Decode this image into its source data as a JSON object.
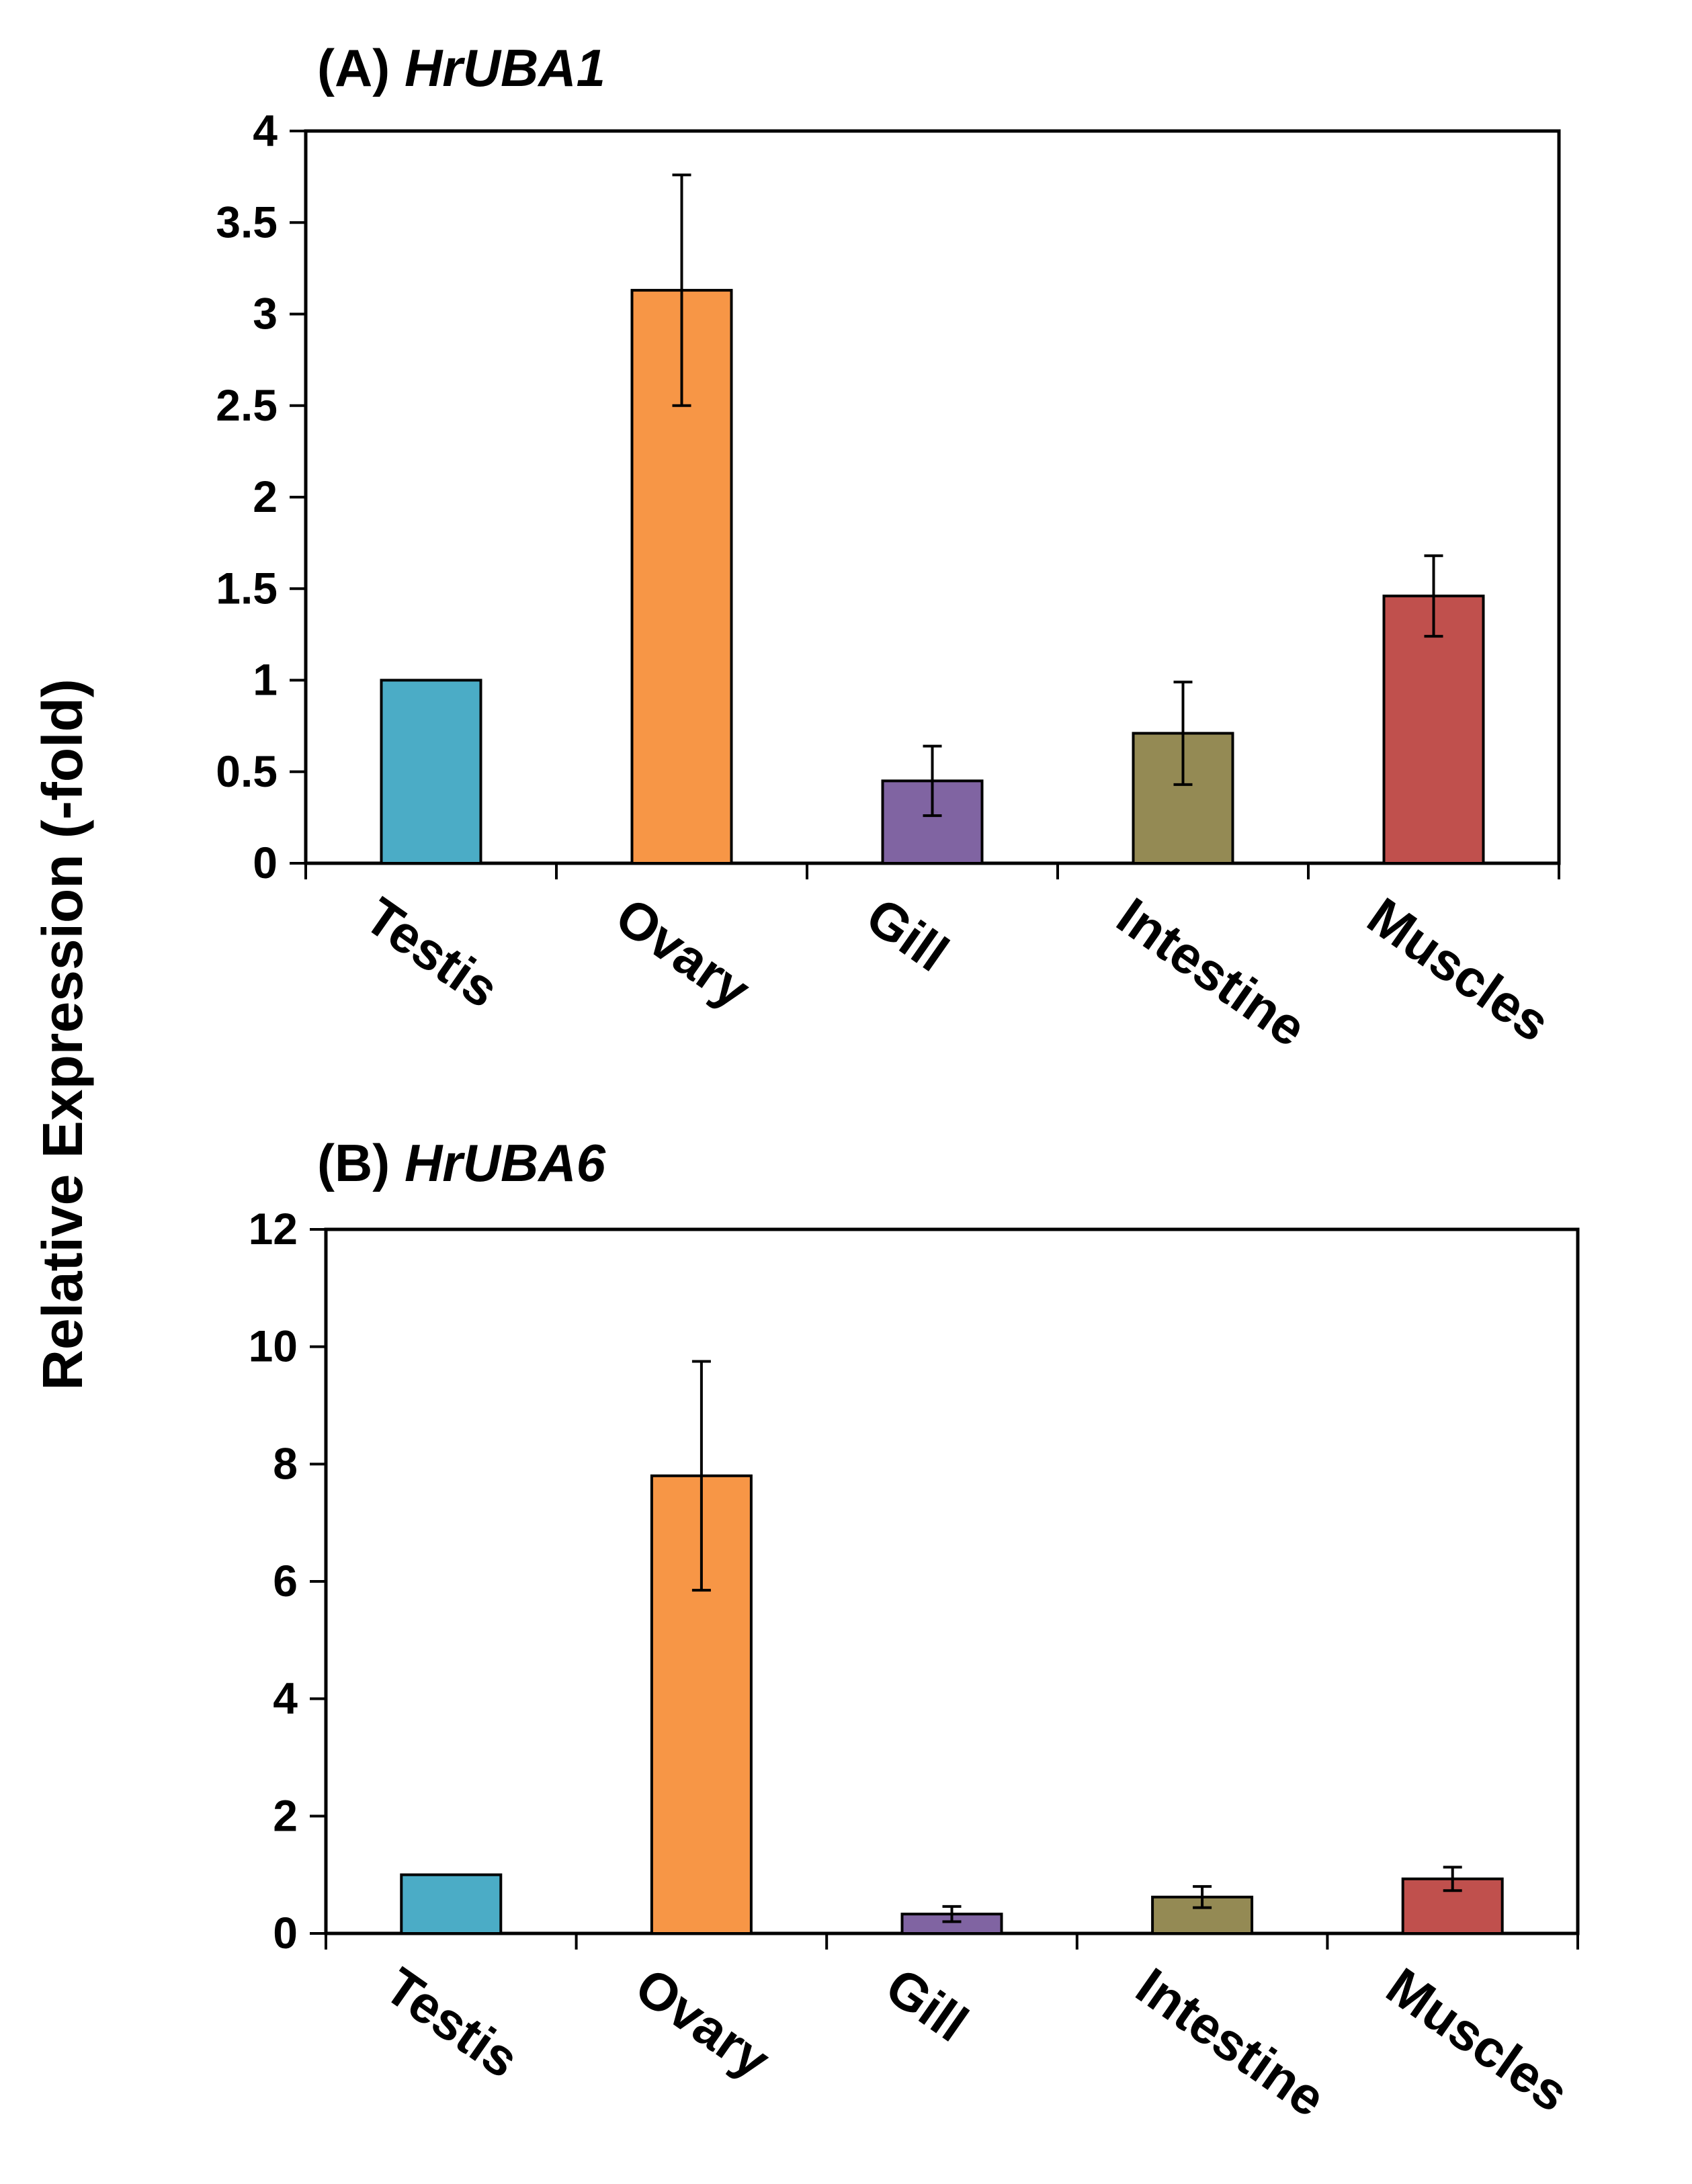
{
  "ylabel": "Relative Expression (-fold)",
  "chart_data": [
    {
      "type": "bar",
      "panel": "(A)",
      "title": "HrUBA1",
      "xlabel": "",
      "ylabel": "Relative Expression (-fold)",
      "ylim": [
        0,
        4
      ],
      "yticks": [
        "0",
        "0.5",
        "1",
        "1.5",
        "2",
        "2.5",
        "3",
        "3.5",
        "4"
      ],
      "categories": [
        "Testis",
        "Ovary",
        "Gill",
        "Intestine",
        "Muscles"
      ],
      "values": [
        1.0,
        3.13,
        0.45,
        0.71,
        1.46
      ],
      "errors": [
        0,
        0.63,
        0.19,
        0.28,
        0.22
      ],
      "colors": [
        "#4BACC6",
        "#F79646",
        "#8064A2",
        "#948A54",
        "#C0504D"
      ],
      "grid": false,
      "legend": "none"
    },
    {
      "type": "bar",
      "panel": "(B)",
      "title": "HrUBA6",
      "xlabel": "",
      "ylabel": "Relative Expression (-fold)",
      "ylim": [
        0,
        12
      ],
      "yticks": [
        "0",
        "2",
        "4",
        "6",
        "8",
        "10",
        "12"
      ],
      "categories": [
        "Testis",
        "Ovary",
        "Gill",
        "Intestine",
        "Muscles"
      ],
      "values": [
        1.0,
        7.8,
        0.33,
        0.62,
        0.93
      ],
      "errors": [
        0,
        1.95,
        0.13,
        0.18,
        0.2
      ],
      "colors": [
        "#4BACC6",
        "#F79646",
        "#8064A2",
        "#948A54",
        "#C0504D"
      ],
      "grid": false,
      "legend": "none"
    }
  ]
}
